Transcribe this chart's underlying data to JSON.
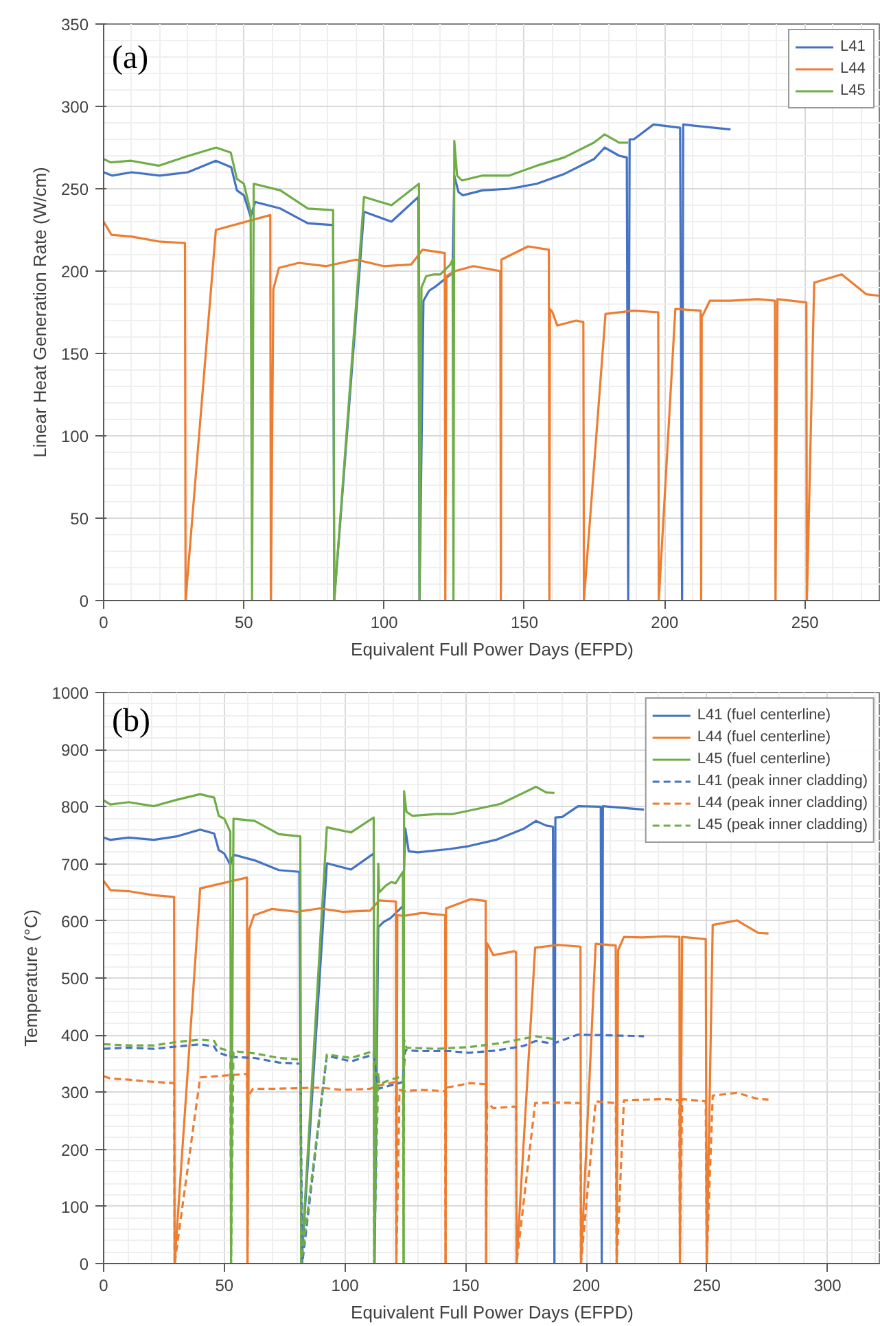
{
  "chart_data": [
    {
      "type": "line",
      "xlabel": "Equivalent Full Power Days (EFPD)",
      "ylabel": "Linear Heat Generation Rate (W/cm)",
      "annotations": [
        "(a)"
      ],
      "xlim": [
        0,
        277
      ],
      "ylim": [
        0,
        350
      ],
      "xticks": [
        0,
        50,
        100,
        150,
        200,
        250
      ],
      "yticks": [
        0,
        50,
        100,
        150,
        200,
        250,
        300,
        350
      ],
      "grid": true,
      "legend": "top right",
      "line_style": "solid",
      "series": [
        {
          "name": "L41",
          "color": "#4472c4",
          "x": [
            0,
            3,
            10,
            20,
            30,
            40,
            45.5,
            47.5,
            50,
            52.4,
            54,
            63,
            72.8,
            81.8,
            82.2,
            92.8,
            102.6,
            112.2,
            112.6,
            114,
            116,
            118.6,
            124.4,
            125,
            126.5,
            128,
            135,
            144.6,
            154.4,
            164.2,
            174.8,
            178.6,
            183.8,
            186.5,
            187,
            187.5,
            189,
            196,
            205.5,
            206.2,
            206.6,
            223.5
          ],
          "values": [
            260,
            258,
            260,
            258,
            260,
            267,
            263,
            249,
            246,
            233,
            242,
            238,
            229,
            228,
            0,
            236,
            230,
            245,
            0,
            182,
            188,
            191,
            199,
            258,
            248,
            246,
            249,
            250,
            253,
            259,
            268,
            275,
            270,
            269,
            0,
            280,
            280,
            289,
            287,
            0,
            289,
            286
          ]
        },
        {
          "name": "L44",
          "color": "#ed7d31",
          "x": [
            0,
            2.8,
            9.8,
            19.6,
            29,
            29.2,
            40,
            59.4,
            59.6,
            60.5,
            62.5,
            69.6,
            79.4,
            90,
            99.8,
            109.6,
            113.7,
            121.6,
            121.8,
            122.2,
            125.2,
            131.8,
            141.4,
            141.6,
            141.8,
            151.3,
            158.7,
            158.9,
            159.1,
            160,
            161.7,
            168.5,
            171,
            171.2,
            178.9,
            189,
            197.7,
            197.9,
            203.8,
            212.8,
            213,
            213.2,
            216.1,
            223.5,
            233.3,
            239.3,
            239.5,
            240.2,
            250.5,
            250.7,
            253.3,
            263.1,
            271.8,
            276.3
          ],
          "values": [
            230,
            222,
            221,
            218,
            217,
            0,
            225,
            234,
            0,
            189,
            202,
            205,
            203,
            207,
            203,
            204,
            213,
            211,
            0,
            197,
            200,
            203,
            200,
            0,
            207,
            215,
            213,
            0,
            177,
            175,
            167,
            170,
            169,
            0,
            174,
            176,
            175,
            0,
            177,
            176,
            0,
            172,
            182,
            182,
            183,
            182,
            0,
            183,
            181,
            0,
            193,
            198,
            186,
            185
          ]
        },
        {
          "name": "L45",
          "color": "#70ad47",
          "x": [
            0,
            2.5,
            9.8,
            19.6,
            30.3,
            40.1,
            45.3,
            47.5,
            50,
            52.4,
            52.9,
            53.5,
            63,
            72.8,
            81.8,
            82.2,
            92.8,
            102.6,
            112.4,
            112.6,
            113.3,
            115,
            117.8,
            120,
            123.6,
            124.4,
            124.7,
            125,
            126,
            127.7,
            135,
            144.6,
            154.4,
            164.2,
            174.8,
            178.6,
            183.8,
            187
          ],
          "values": [
            268,
            266,
            267,
            264,
            270,
            275,
            272,
            256,
            253,
            236,
            0,
            253,
            249,
            238,
            237,
            0,
            245,
            240,
            253,
            0,
            190,
            197,
            198,
            198,
            204,
            207,
            0,
            279,
            258,
            255,
            258,
            258,
            264,
            269,
            278,
            283,
            278,
            278
          ]
        }
      ]
    },
    {
      "type": "line",
      "xlabel": "Equivalent Full Power Days (EFPD)",
      "ylabel": "Temperature (°C)",
      "annotations": [
        "(b)"
      ],
      "xlim": [
        0,
        322
      ],
      "ylim": [
        0,
        1000
      ],
      "xticks": [
        0,
        50,
        100,
        150,
        200,
        250,
        300
      ],
      "yticks": [
        0,
        100,
        200,
        300,
        400,
        500,
        600,
        700,
        800,
        900,
        1000
      ],
      "grid": true,
      "legend": "top right",
      "series": [
        {
          "name": "L41 (fuel centerline)",
          "color": "#4472c4",
          "line_style": "solid",
          "x": [
            0,
            2.8,
            10.4,
            20.8,
            30.2,
            40,
            45.8,
            47.7,
            50,
            52.5,
            53.8,
            62.6,
            72.6,
            81.1,
            82,
            92.5,
            102.5,
            111.9,
            112.3,
            113.8,
            116,
            118.9,
            124,
            125,
            126.4,
            130.2,
            143.4,
            151.3,
            162.6,
            173.9,
            179.2,
            183.4,
            186.2,
            186.8,
            187.2,
            190,
            196.6,
            206,
            206.4,
            206.9,
            223.9
          ],
          "values": [
            746,
            742,
            746,
            742,
            748,
            760,
            753,
            724,
            718,
            698,
            716,
            706,
            689,
            686,
            0,
            701,
            690,
            718,
            0,
            589,
            598,
            605,
            626,
            762,
            722,
            720,
            726,
            731,
            742,
            761,
            775,
            767,
            765,
            0,
            781,
            782,
            801,
            800,
            0,
            801,
            795
          ]
        },
        {
          "name": "L44 (fuel centerline)",
          "color": "#ed7d31",
          "line_style": "solid",
          "x": [
            0,
            2.8,
            10.4,
            20.8,
            29.2,
            29.4,
            40,
            59.4,
            59.6,
            60.4,
            62.3,
            69.8,
            80.2,
            89.6,
            99,
            110.4,
            114.2,
            121.1,
            121.3,
            121.7,
            124.5,
            132,
            141.5,
            141.7,
            141.9,
            152,
            158.3,
            158.5,
            158.9,
            161.5,
            170.2,
            170.9,
            171.1,
            178.8,
            188.2,
            197.6,
            197.8,
            203.9,
            212.2,
            212.6,
            213.2,
            215.6,
            223.2,
            232.6,
            238.6,
            238.8,
            239.7,
            249.5,
            249.9,
            252.4,
            262.4,
            271.3,
            275.5
          ],
          "values": [
            670,
            654,
            652,
            645,
            642,
            0,
            657,
            676,
            0,
            586,
            610,
            621,
            616,
            622,
            616,
            618,
            636,
            634,
            0,
            610,
            609,
            614,
            610,
            0,
            622,
            638,
            635,
            0,
            561,
            540,
            547,
            545,
            0,
            553,
            558,
            555,
            0,
            560,
            557,
            0,
            549,
            572,
            571,
            573,
            572,
            0,
            572,
            568,
            0,
            593,
            601,
            579,
            578
          ]
        },
        {
          "name": "L45 (fuel centerline)",
          "color": "#70ad47",
          "line_style": "solid",
          "x": [
            0,
            2.8,
            10.4,
            20.8,
            30.2,
            40,
            45.8,
            47.7,
            50,
            52.5,
            52.8,
            53.8,
            62.6,
            72.6,
            81.5,
            81.9,
            92.5,
            102.5,
            111.9,
            112.1,
            113.8,
            114.2,
            117,
            119.2,
            121,
            124,
            124.3,
            124.5,
            125.5,
            128,
            137.7,
            144.3,
            151.3,
            164.5,
            179.2,
            183.4,
            186.8
          ],
          "values": [
            811,
            804,
            808,
            801,
            812,
            822,
            816,
            784,
            779,
            756,
            0,
            779,
            775,
            752,
            748,
            0,
            764,
            755,
            781,
            0,
            700,
            650,
            662,
            668,
            666,
            686,
            0,
            827,
            791,
            784,
            787,
            787,
            793,
            805,
            835,
            825,
            824
          ]
        },
        {
          "name": "L41 (peak inner cladding)",
          "color": "#4472c4",
          "line_style": "dashed",
          "x": [
            0,
            10.4,
            20.8,
            30.2,
            40,
            45.8,
            47.2,
            52.5,
            62.6,
            72.6,
            81.5,
            82.3,
            92.5,
            102.5,
            111.9,
            113.8,
            118.9,
            124,
            125,
            130.2,
            143.4,
            151.3,
            162.6,
            173.9,
            179.2,
            186.2,
            196.6,
            206,
            223.9
          ],
          "values": [
            376,
            378,
            376,
            380,
            384,
            380,
            370,
            362,
            360,
            352,
            350,
            0,
            364,
            354,
            366,
            306,
            312,
            318,
            374,
            372,
            372,
            369,
            373,
            381,
            390,
            385,
            401,
            400,
            398
          ]
        },
        {
          "name": "L44 (peak inner cladding)",
          "color": "#ed7d31",
          "line_style": "dashed",
          "x": [
            0,
            2.8,
            10.4,
            20.8,
            29.2,
            29.4,
            40,
            59.4,
            59.6,
            60,
            61.9,
            69.8,
            89.6,
            99,
            110.4,
            114.2,
            121.1,
            121.3,
            122.6,
            124.5,
            132,
            141.5,
            141.7,
            141.9,
            152,
            158.3,
            158.5,
            158.9,
            161.5,
            170.2,
            170.9,
            171.1,
            178.8,
            188.2,
            197.6,
            197.8,
            203.9,
            212.2,
            212.6,
            215.6,
            232.6,
            238.6,
            238.8,
            239.7,
            249.5,
            249.9,
            252.4,
            262.4,
            271.3,
            275.5
          ],
          "values": [
            328,
            324,
            322,
            318,
            316,
            0,
            326,
            332,
            0,
            294,
            306,
            306,
            308,
            304,
            306,
            312,
            318,
            0,
            304,
            302,
            304,
            302,
            0,
            308,
            316,
            314,
            0,
            282,
            272,
            275,
            273,
            0,
            281,
            282,
            281,
            0,
            284,
            281,
            0,
            286,
            288,
            286,
            0,
            288,
            284,
            0,
            294,
            299,
            288,
            287
          ]
        },
        {
          "name": "L45 (peak inner cladding)",
          "color": "#70ad47",
          "line_style": "dashed",
          "x": [
            0,
            10.4,
            20.8,
            30.2,
            40,
            45.8,
            47.2,
            52.5,
            52.8,
            53.8,
            62.6,
            72.6,
            81.5,
            81.9,
            92.5,
            102.5,
            111.9,
            112.1,
            113.8,
            114.2,
            118.9,
            124,
            124.3,
            124.5,
            125.5,
            137.7,
            151.3,
            164.5,
            179.2,
            186.8
          ],
          "values": [
            384,
            382,
            382,
            388,
            392,
            390,
            378,
            372,
            0,
            372,
            368,
            360,
            357,
            0,
            366,
            360,
            372,
            0,
            334,
            314,
            322,
            328,
            0,
            392,
            378,
            376,
            379,
            386,
            398,
            393
          ]
        }
      ]
    }
  ]
}
